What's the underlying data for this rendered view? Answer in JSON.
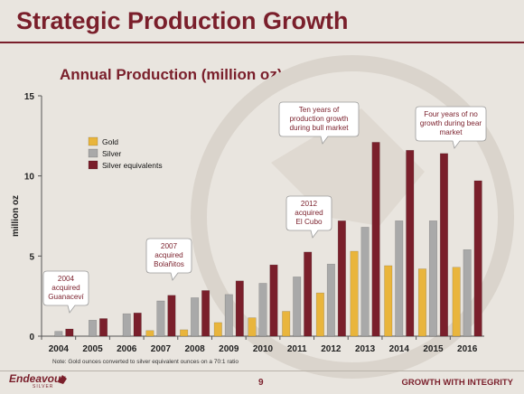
{
  "slide": {
    "title": "Strategic Production Growth",
    "chart_title": "Annual Production (million oz)",
    "note": "Note: Gold ounces converted to silver equivalent ounces on a 70:1 ratio",
    "page_number": "9",
    "tagline": "GROWTH WITH INTEGRITY",
    "logo_name": "Endeavour",
    "logo_sub": "SILVER"
  },
  "colors": {
    "brand": "#7a1f2b",
    "gold": "#e9b53c",
    "silver": "#a9a9a9",
    "silver_equivalents": "#7a1f2b",
    "background": "#e9e5df"
  },
  "chart_data": {
    "type": "bar",
    "title": "Annual Production (million oz)",
    "ylabel": "million oz",
    "xlabel": "",
    "ylim": [
      0,
      15
    ],
    "yticks": [
      "0",
      "5",
      "10",
      "15"
    ],
    "grid": false,
    "legend_position": "top-left",
    "categories": [
      "2004",
      "2005",
      "2006",
      "2007",
      "2008",
      "2009",
      "2010",
      "2011",
      "2012",
      "2013",
      "2014",
      "2015",
      "2016"
    ],
    "series": [
      {
        "name": "Gold",
        "color": "#e9b53c",
        "values": [
          0.0,
          0.0,
          0.0,
          0.35,
          0.4,
          0.85,
          1.15,
          1.55,
          2.7,
          5.3,
          4.4,
          4.2,
          4.3
        ]
      },
      {
        "name": "Silver",
        "color": "#a9a9a9",
        "values": [
          0.3,
          1.0,
          1.4,
          2.2,
          2.4,
          2.6,
          3.3,
          3.7,
          4.5,
          6.8,
          7.2,
          7.2,
          5.4
        ]
      },
      {
        "name": "Silver equivalents",
        "color": "#7a1f2b",
        "values": [
          0.45,
          1.1,
          1.45,
          2.55,
          2.85,
          3.45,
          4.45,
          5.25,
          7.2,
          12.1,
          11.6,
          11.4,
          9.7
        ]
      }
    ],
    "annotations": [
      {
        "label": "2004 acquired Guanaceví",
        "lines": [
          "2004",
          "acquired",
          "Guanaceví"
        ],
        "category": "2004"
      },
      {
        "label": "2007 acquired Bolañitos",
        "lines": [
          "2007",
          "acquired",
          "Bolañitos"
        ],
        "category": "2007"
      },
      {
        "label": "2012 acquired El Cubo",
        "lines": [
          "2012",
          "acquired",
          "El Cubo"
        ],
        "category": "2012"
      },
      {
        "label": "Ten years of production growth during bull market",
        "lines": [
          "Ten years of",
          "production growth",
          "during bull market"
        ],
        "category": "2013"
      },
      {
        "label": "Four years of no growth during bear market",
        "lines": [
          "Four years of no",
          "growth during bear",
          "market"
        ],
        "category": "2015"
      }
    ]
  }
}
